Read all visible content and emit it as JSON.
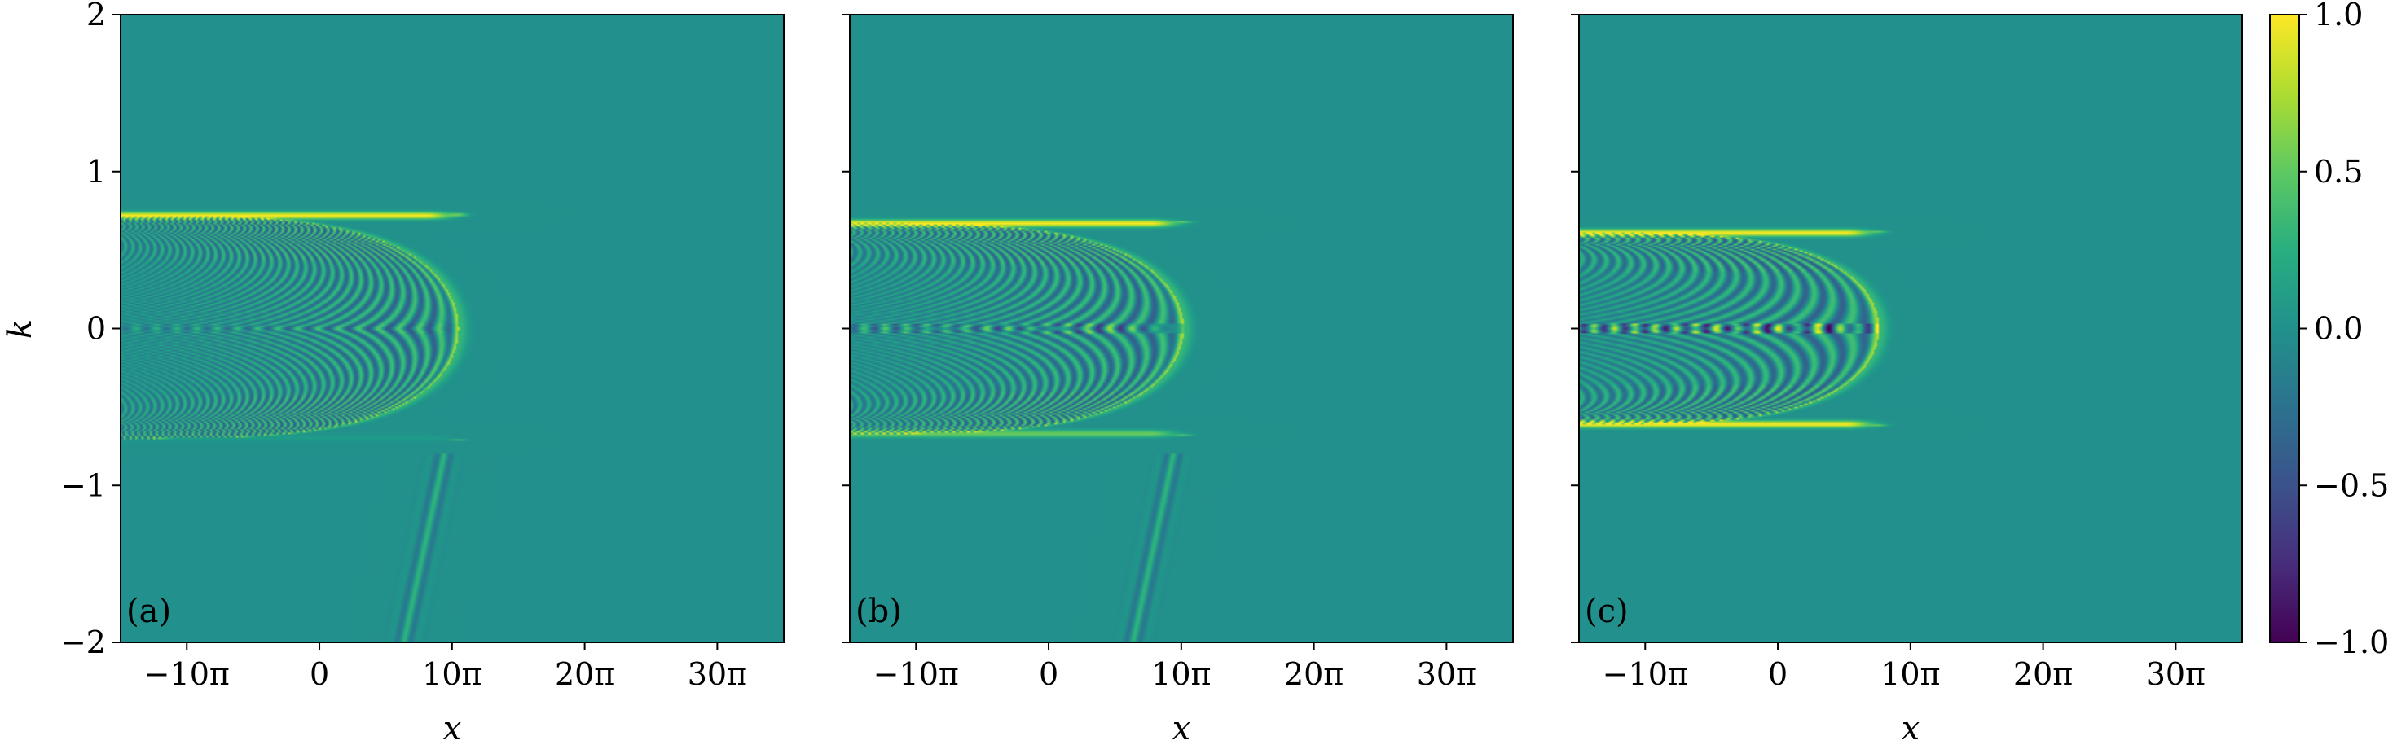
{
  "chart_data": [
    {
      "type": "heatmap",
      "panel_label": "(a)",
      "xlabel": "x",
      "ylabel": "k",
      "xlim": [
        -47.1,
        110.0
      ],
      "ylim": [
        -2,
        2
      ],
      "xticks": [
        {
          "value": -31.416,
          "label": "−10π"
        },
        {
          "value": 0,
          "label": "0"
        },
        {
          "value": 31.416,
          "label": "10π"
        },
        {
          "value": 62.832,
          "label": "20π"
        },
        {
          "value": 94.248,
          "label": "30π"
        }
      ],
      "yticks": [
        {
          "value": 2,
          "label": "2"
        },
        {
          "value": 1,
          "label": "1"
        },
        {
          "value": 0,
          "label": "0"
        },
        {
          "value": -1,
          "label": "−1"
        },
        {
          "value": -2,
          "label": "−2"
        }
      ],
      "features": {
        "band_k_top": 0.72,
        "band_k_bottom": -0.7,
        "bright_top": 1.0,
        "bright_bottom": 0.1,
        "turn_x": 33,
        "tail_x_bottom": 20,
        "fringe_wavelength": 1.7,
        "center_dots": 0.15
      }
    },
    {
      "type": "heatmap",
      "panel_label": "(b)",
      "xlabel": "x",
      "ylabel": "",
      "xlim": [
        -47.1,
        110.0
      ],
      "ylim": [
        -2,
        2
      ],
      "xticks": [
        {
          "value": -31.416,
          "label": "−10π"
        },
        {
          "value": 0,
          "label": "0"
        },
        {
          "value": 31.416,
          "label": "10π"
        },
        {
          "value": 62.832,
          "label": "20π"
        },
        {
          "value": 94.248,
          "label": "30π"
        }
      ],
      "yticks": [],
      "features": {
        "band_k_top": 0.67,
        "band_k_bottom": -0.67,
        "bright_top": 1.0,
        "bright_bottom": 0.55,
        "turn_x": 32,
        "tail_x_bottom": 20,
        "fringe_wavelength": 2.1,
        "center_dots": 0.5
      }
    },
    {
      "type": "heatmap",
      "panel_label": "(c)",
      "xlabel": "x",
      "ylabel": "",
      "xlim": [
        -47.1,
        110.0
      ],
      "ylim": [
        -2,
        2
      ],
      "xticks": [
        {
          "value": -31.416,
          "label": "−10π"
        },
        {
          "value": 0,
          "label": "0"
        },
        {
          "value": 31.416,
          "label": "10π"
        },
        {
          "value": 62.832,
          "label": "20π"
        },
        {
          "value": 94.248,
          "label": "30π"
        }
      ],
      "yticks": [],
      "features": {
        "band_k_top": 0.61,
        "band_k_bottom": -0.61,
        "bright_top": 1.0,
        "bright_bottom": 1.0,
        "turn_x": 24,
        "tail_x_bottom": null,
        "fringe_wavelength": 2.8,
        "center_dots": 1.0
      }
    }
  ],
  "colorbar": {
    "colormap": "viridis",
    "vmin": -1.0,
    "vmax": 1.0,
    "ticks": [
      {
        "value": 1.0,
        "label": "1.0"
      },
      {
        "value": 0.5,
        "label": "0.5"
      },
      {
        "value": 0.0,
        "label": "0.0"
      },
      {
        "value": -0.5,
        "label": "−0.5"
      },
      {
        "value": -1.0,
        "label": "−1.0"
      }
    ]
  },
  "colors": {
    "viridis_low": "#440154",
    "viridis_mid": "#21918c",
    "viridis_high": "#fde725"
  }
}
